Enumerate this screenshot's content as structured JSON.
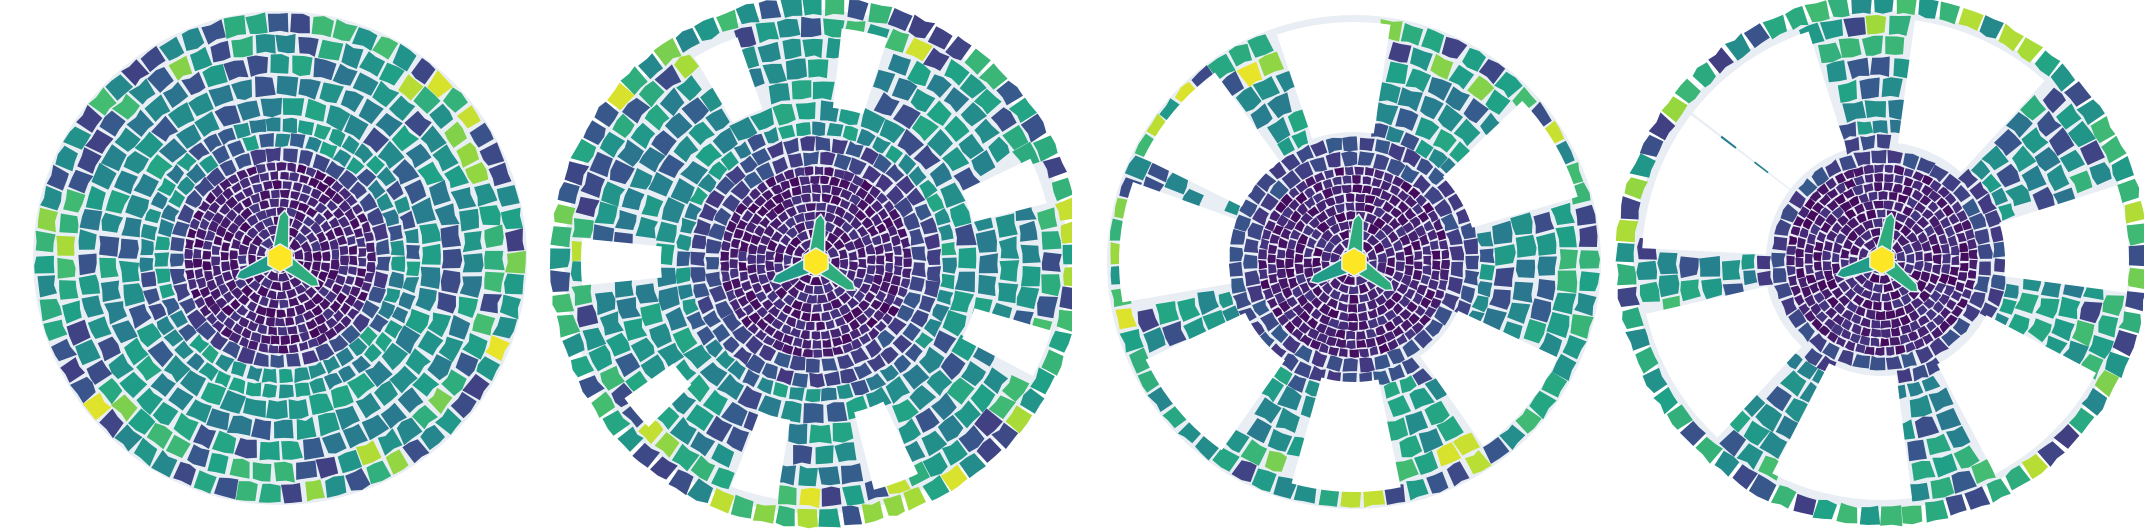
{
  "image": {
    "kind": "voronoi-tessellation-sequence",
    "panel_count": 4,
    "colormap": [
      "#440154",
      "#46327e",
      "#365c8d",
      "#277f8e",
      "#1fa187",
      "#4ac16d",
      "#a0da39",
      "#fde725"
    ],
    "cell_edge_color": "#e9eef5",
    "background": "#ffffff"
  },
  "panels": [
    {
      "name": "panel-1",
      "holes": 0,
      "inner_ring_color": "#46327e",
      "outer_field_color": "#2a8f8a"
    },
    {
      "name": "panel-2",
      "holes": 8,
      "inner_ring_color": "#46327e",
      "outer_field_color": "#2a8f8a"
    },
    {
      "name": "panel-3",
      "holes": 7,
      "inner_ring_color": "#46327e",
      "outer_field_color": "#2a8f8a"
    },
    {
      "name": "panel-4",
      "holes": 7,
      "inner_ring_color": "#46327e",
      "outer_field_color": "#2a8f8a"
    }
  ]
}
